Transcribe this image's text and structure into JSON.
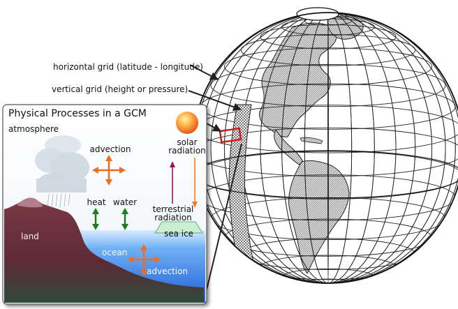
{
  "annotations": {
    "horizontal_grid": "horizontal grid (latitude - longitude)",
    "vertical_grid": "vertical grid (height or pressure)"
  },
  "inset": {
    "title": "Physical Processes in a GCM",
    "atmosphere": "atmosphere",
    "advection_air": "advection",
    "solar_radiation_line1": "solar",
    "solar_radiation_line2": "radiation",
    "heat": "heat",
    "water": "water",
    "terrestrial_radiation_line1": "terrestrial",
    "terrestrial_radiation_line2": "radiation",
    "sea_ice": "sea ice",
    "land": "land",
    "ocean": "ocean",
    "advection_ocean": "advection"
  },
  "colors": {
    "land": "#6b2e37",
    "ocean": "#3b83e6",
    "sun": "#f26a1b",
    "advection_arrow": "#f36a21",
    "exchange_arrow": "#1a7f1a",
    "terrestrial_arrow": "#8c1a5c",
    "solar_arrow": "#f07a20",
    "highlight_box": "#d01818"
  }
}
